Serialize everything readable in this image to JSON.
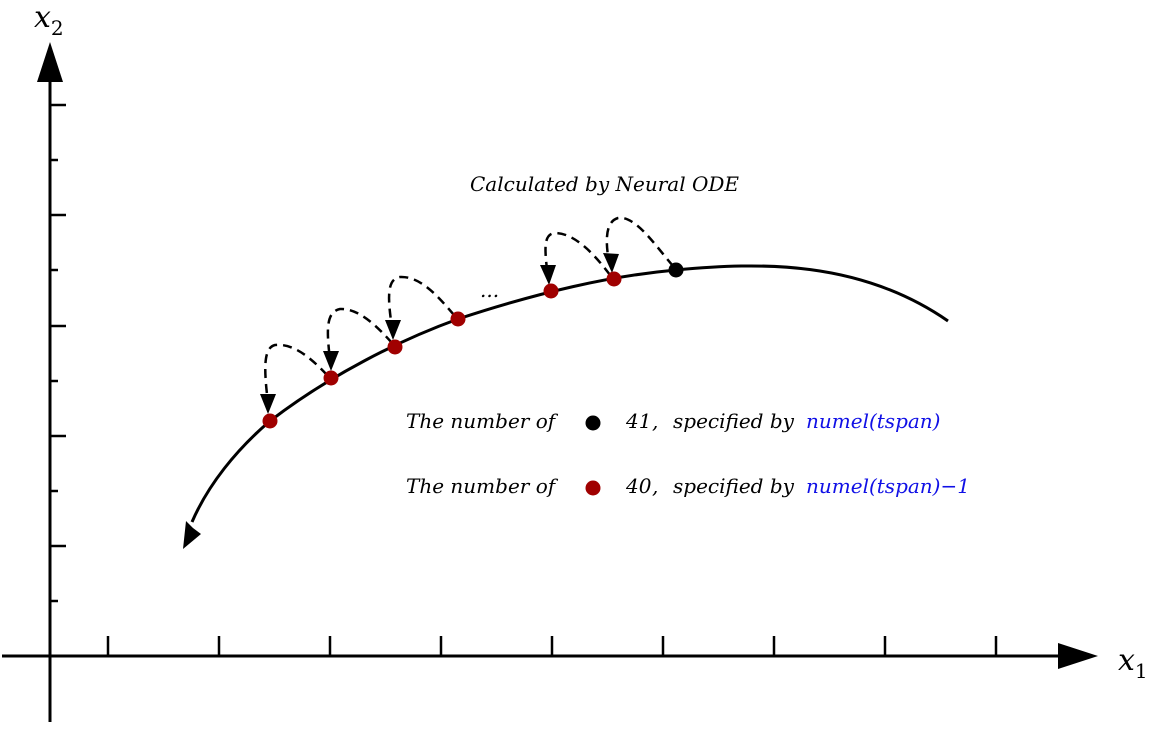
{
  "axes": {
    "x_label": "x",
    "x_subscript": "1",
    "y_label": "x",
    "y_subscript": "2"
  },
  "annotation": {
    "title": "Calculated by Neural ODE",
    "ellipsis": "..."
  },
  "legend": {
    "black_row": {
      "prefix": "The number of",
      "count": "41",
      "comma": ",",
      "middle": "specified by",
      "code": "numel(tspan)",
      "dot_color": "#000000"
    },
    "red_row": {
      "prefix": "The number of",
      "count": "40",
      "comma": ",",
      "middle": "specified by",
      "code": "numel(tspan)−1",
      "dot_color": "#a00000"
    }
  },
  "colors": {
    "red_point": "#a00000",
    "black_point": "#000000",
    "code_text": "#1010e6"
  }
}
